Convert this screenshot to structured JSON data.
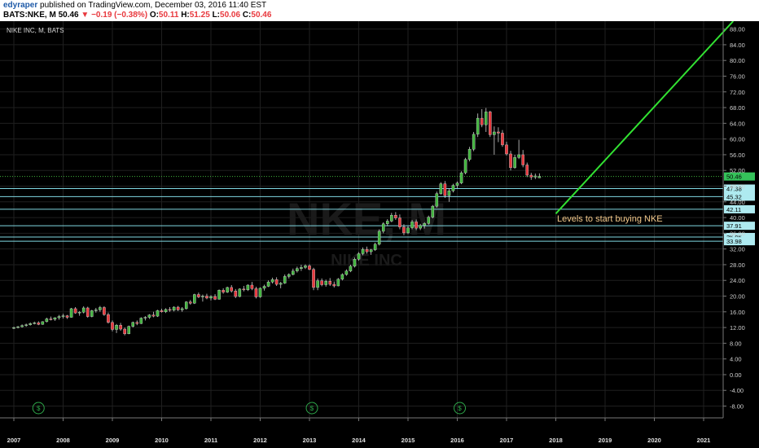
{
  "header": {
    "author": "edyraper",
    "published": "published on TradingView.com, December 03, 2016 11:40 EST",
    "ticker": "BATS:NKE, M",
    "price": "50.46",
    "change": "▼ −0.19 (−0.38%)",
    "o_label": "O:",
    "o_value": "50.11",
    "h_label": "H:",
    "h_value": "51.25",
    "l_label": "L:",
    "l_value": "50.06",
    "c_label": "C:",
    "c_value": "50.46"
  },
  "chart_data": {
    "type": "candlestick",
    "symbol_label": "NIKE INC, M, BATS",
    "watermark_main": "NKE, M",
    "watermark_sub": "NIKE INC",
    "annotation": "Levels to start buying NKE",
    "ylim": [
      -11,
      90
    ],
    "y_ticks": [
      "-8.00",
      "-4.00",
      "0.00",
      "4.00",
      "8.00",
      "12.00",
      "16.00",
      "20.00",
      "24.00",
      "28.00",
      "32.00",
      "36.00",
      "40.00",
      "44.00",
      "48.00",
      "52.00",
      "56.00",
      "60.00",
      "64.00",
      "68.00",
      "72.00",
      "76.00",
      "80.00",
      "84.00",
      "88.00"
    ],
    "x_ticks": [
      {
        "label": "2007",
        "t": 2007.0
      },
      {
        "label": "2008",
        "t": 2008.0
      },
      {
        "label": "2009",
        "t": 2009.0
      },
      {
        "label": "2010",
        "t": 2010.0
      },
      {
        "label": "2011",
        "t": 2011.0
      },
      {
        "label": "2012",
        "t": 2012.0
      },
      {
        "label": "2013",
        "t": 2013.0
      },
      {
        "label": "2014",
        "t": 2014.0
      },
      {
        "label": "2015",
        "t": 2015.0
      },
      {
        "label": "2016",
        "t": 2016.0
      },
      {
        "label": "2017",
        "t": 2017.0
      },
      {
        "label": "2018",
        "t": 2018.0
      },
      {
        "label": "2019",
        "t": 2019.0
      },
      {
        "label": "2020",
        "t": 2020.0
      },
      {
        "label": "2021",
        "t": 2021.0
      }
    ],
    "dividend_marks": [
      {
        "label": "$",
        "t": 2007.5
      },
      {
        "label": "$",
        "t": 2013.05
      },
      {
        "label": "$",
        "t": 2016.05
      }
    ],
    "last_price": {
      "value": 50.46,
      "label": "50.46"
    },
    "levels": [
      {
        "value": 47.38,
        "label": "47.38"
      },
      {
        "value": 45.32,
        "label": "45.32"
      },
      {
        "value": 42.11,
        "label": "42.11"
      },
      {
        "value": 37.91,
        "label": "37.91"
      },
      {
        "value": 35.05,
        "label": "35.05"
      },
      {
        "value": 33.98,
        "label": "33.98"
      }
    ],
    "trend_line": {
      "t1": 2018.0,
      "v1": 41.0,
      "t2": 2021.6,
      "v2": 90.0
    },
    "candles": [
      [
        11.8,
        12.2,
        11.6,
        12.0
      ],
      [
        12.0,
        12.4,
        11.8,
        12.2
      ],
      [
        12.2,
        12.8,
        12.0,
        12.5
      ],
      [
        12.5,
        13.0,
        12.2,
        12.7
      ],
      [
        12.7,
        13.3,
        12.5,
        13.0
      ],
      [
        13.0,
        13.5,
        12.8,
        13.2
      ],
      [
        13.2,
        13.6,
        12.6,
        12.8
      ],
      [
        12.8,
        13.6,
        12.7,
        13.5
      ],
      [
        13.5,
        14.5,
        13.3,
        14.2
      ],
      [
        14.2,
        14.8,
        13.8,
        14.1
      ],
      [
        14.1,
        14.6,
        13.7,
        14.5
      ],
      [
        14.5,
        15.2,
        14.0,
        14.8
      ],
      [
        14.8,
        15.5,
        14.3,
        15.0
      ],
      [
        15.0,
        15.2,
        14.2,
        14.6
      ],
      [
        14.6,
        17.0,
        14.5,
        16.8
      ],
      [
        16.8,
        17.2,
        15.5,
        15.7
      ],
      [
        15.7,
        16.2,
        15.0,
        15.9
      ],
      [
        15.9,
        17.4,
        15.6,
        17.0
      ],
      [
        17.0,
        17.3,
        14.5,
        14.8
      ],
      [
        14.8,
        16.5,
        14.6,
        16.3
      ],
      [
        16.3,
        17.0,
        15.8,
        16.5
      ],
      [
        16.5,
        17.5,
        16.0,
        17.1
      ],
      [
        17.1,
        17.4,
        15.0,
        15.3
      ],
      [
        15.3,
        15.8,
        13.0,
        13.3
      ],
      [
        13.3,
        13.8,
        11.0,
        11.5
      ],
      [
        11.5,
        12.9,
        10.6,
        12.6
      ],
      [
        12.6,
        13.2,
        11.2,
        11.6
      ],
      [
        11.6,
        12.0,
        10.0,
        10.4
      ],
      [
        10.4,
        12.5,
        10.3,
        12.3
      ],
      [
        12.3,
        13.5,
        12.0,
        13.3
      ],
      [
        13.3,
        13.8,
        12.6,
        13.0
      ],
      [
        13.0,
        14.6,
        12.9,
        14.4
      ],
      [
        14.4,
        14.9,
        13.8,
        14.6
      ],
      [
        14.6,
        15.4,
        14.2,
        15.2
      ],
      [
        15.2,
        16.0,
        14.6,
        14.9
      ],
      [
        14.9,
        16.5,
        14.7,
        16.3
      ],
      [
        16.3,
        16.8,
        15.8,
        16.0
      ],
      [
        16.0,
        16.9,
        15.7,
        16.6
      ],
      [
        16.6,
        17.2,
        16.0,
        16.4
      ],
      [
        16.4,
        17.4,
        16.1,
        17.2
      ],
      [
        17.2,
        17.5,
        16.2,
        16.5
      ],
      [
        16.5,
        17.2,
        16.0,
        16.8
      ],
      [
        16.8,
        18.7,
        16.6,
        18.5
      ],
      [
        18.5,
        19.0,
        17.8,
        18.2
      ],
      [
        18.2,
        20.6,
        18.0,
        20.4
      ],
      [
        20.4,
        20.9,
        19.5,
        19.8
      ],
      [
        19.8,
        20.4,
        18.6,
        20.0
      ],
      [
        20.0,
        20.6,
        19.2,
        19.5
      ],
      [
        19.5,
        20.2,
        18.9,
        19.9
      ],
      [
        19.9,
        20.5,
        19.0,
        19.2
      ],
      [
        19.2,
        21.7,
        19.1,
        21.5
      ],
      [
        21.5,
        22.0,
        20.6,
        21.0
      ],
      [
        21.0,
        22.4,
        20.8,
        22.2
      ],
      [
        22.2,
        22.8,
        20.9,
        21.3
      ],
      [
        21.3,
        21.8,
        19.5,
        19.9
      ],
      [
        19.9,
        22.0,
        19.7,
        21.8
      ],
      [
        21.8,
        22.6,
        21.2,
        21.6
      ],
      [
        21.6,
        23.0,
        21.3,
        22.8
      ],
      [
        22.8,
        23.6,
        21.5,
        21.9
      ],
      [
        21.9,
        22.4,
        19.4,
        19.8
      ],
      [
        19.8,
        22.2,
        19.6,
        22.0
      ],
      [
        22.0,
        22.9,
        21.4,
        22.5
      ],
      [
        22.5,
        24.0,
        22.3,
        23.6
      ],
      [
        23.6,
        24.7,
        23.2,
        24.2
      ],
      [
        24.2,
        24.8,
        22.6,
        23.0
      ],
      [
        23.0,
        23.6,
        22.0,
        23.3
      ],
      [
        23.3,
        25.5,
        23.1,
        25.0
      ],
      [
        25.0,
        25.8,
        24.5,
        25.5
      ],
      [
        25.5,
        27.0,
        25.3,
        26.4
      ],
      [
        26.4,
        27.5,
        26.0,
        27.0
      ],
      [
        27.0,
        28.0,
        26.4,
        27.3
      ],
      [
        27.3,
        28.1,
        26.9,
        27.7
      ],
      [
        27.7,
        28.1,
        26.6,
        26.8
      ],
      [
        26.8,
        27.2,
        21.5,
        22.2
      ],
      [
        22.2,
        24.5,
        21.5,
        23.9
      ],
      [
        23.9,
        24.5,
        22.5,
        22.9
      ],
      [
        22.9,
        24.2,
        22.4,
        23.8
      ],
      [
        23.8,
        24.6,
        22.6,
        23.0
      ],
      [
        23.0,
        23.7,
        22.2,
        22.6
      ],
      [
        22.6,
        24.6,
        22.5,
        24.3
      ],
      [
        24.3,
        25.8,
        24.0,
        25.5
      ],
      [
        25.5,
        26.8,
        25.2,
        26.4
      ],
      [
        26.4,
        28.0,
        26.1,
        27.6
      ],
      [
        27.6,
        29.8,
        27.3,
        29.4
      ],
      [
        29.4,
        31.2,
        29.0,
        30.8
      ],
      [
        30.8,
        32.4,
        30.4,
        31.9
      ],
      [
        31.9,
        32.6,
        30.8,
        31.3
      ],
      [
        31.3,
        32.0,
        30.5,
        31.8
      ],
      [
        31.8,
        33.6,
        31.5,
        33.2
      ],
      [
        33.2,
        37.0,
        32.9,
        36.5
      ],
      [
        36.5,
        38.8,
        36.0,
        38.4
      ],
      [
        38.4,
        39.6,
        37.8,
        39.1
      ],
      [
        39.1,
        41.2,
        38.8,
        40.6
      ],
      [
        40.6,
        41.4,
        39.4,
        39.9
      ],
      [
        39.9,
        40.8,
        37.0,
        37.6
      ],
      [
        37.6,
        38.3,
        35.5,
        36.1
      ],
      [
        36.1,
        37.9,
        35.8,
        37.4
      ],
      [
        37.4,
        39.4,
        37.0,
        38.9
      ],
      [
        38.9,
        39.5,
        36.8,
        37.3
      ],
      [
        37.3,
        38.4,
        36.8,
        38.0
      ],
      [
        38.0,
        38.8,
        37.2,
        38.5
      ],
      [
        38.5,
        40.5,
        38.2,
        40.1
      ],
      [
        40.1,
        43.2,
        39.8,
        42.9
      ],
      [
        42.9,
        46.6,
        42.5,
        46.1
      ],
      [
        46.1,
        49.0,
        45.8,
        48.6
      ],
      [
        48.6,
        49.3,
        45.0,
        45.6
      ],
      [
        45.6,
        47.3,
        44.0,
        46.8
      ],
      [
        46.8,
        48.6,
        46.4,
        48.2
      ],
      [
        48.2,
        49.2,
        47.5,
        48.8
      ],
      [
        48.8,
        51.8,
        48.5,
        51.4
      ],
      [
        51.4,
        55.2,
        51.0,
        54.8
      ],
      [
        54.8,
        58.0,
        54.3,
        57.4
      ],
      [
        57.4,
        61.8,
        56.9,
        61.2
      ],
      [
        61.2,
        66.5,
        60.5,
        65.3
      ],
      [
        65.3,
        67.6,
        63.0,
        63.6
      ],
      [
        63.6,
        67.9,
        61.8,
        66.9
      ],
      [
        66.9,
        67.2,
        60.5,
        61.1
      ],
      [
        61.1,
        63.2,
        56.0,
        61.8
      ],
      [
        61.8,
        63.0,
        59.2,
        61.5
      ],
      [
        61.5,
        62.3,
        58.0,
        58.5
      ],
      [
        58.5,
        59.3,
        55.8,
        56.2
      ],
      [
        56.2,
        57.0,
        52.0,
        52.7
      ],
      [
        52.7,
        56.0,
        52.4,
        55.3
      ],
      [
        55.3,
        59.8,
        54.9,
        56.0
      ],
      [
        56.0,
        57.2,
        52.8,
        53.4
      ],
      [
        53.4,
        54.0,
        50.3,
        50.8
      ],
      [
        50.8,
        51.4,
        49.6,
        50.3
      ],
      [
        50.3,
        51.2,
        49.8,
        50.6
      ],
      [
        50.11,
        51.25,
        50.06,
        50.46
      ]
    ]
  },
  "colors": {
    "background": "#000000",
    "up_body": "#41b53d",
    "down_body": "#e8383d",
    "trend_line": "#32e232",
    "level_line": "#80d8e2",
    "level_tag_bg": "#aeeaf0",
    "last_price_line": "#41b53d",
    "last_price_tag_bg": "#35c25a",
    "annotation": "#f3c98b"
  }
}
